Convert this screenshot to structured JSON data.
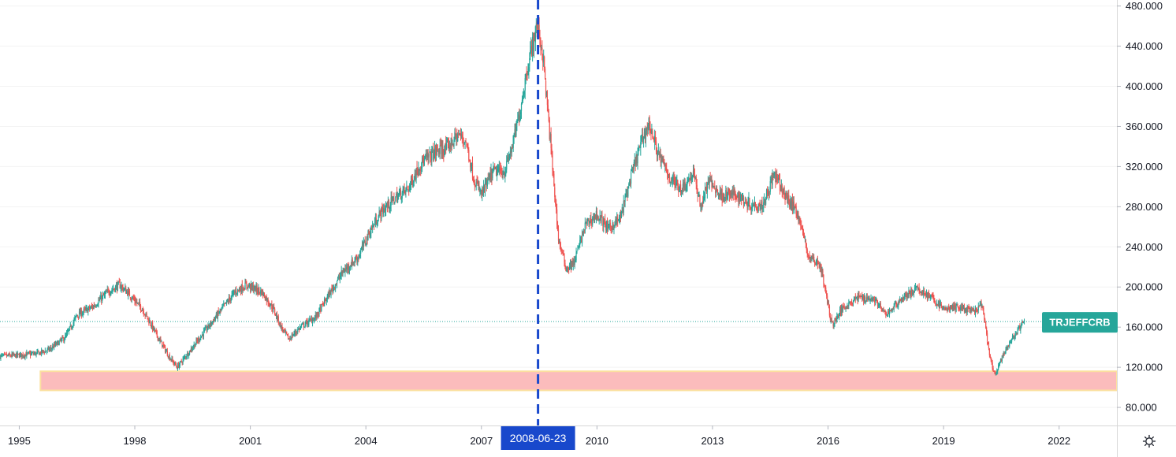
{
  "chart_data": {
    "type": "candlestick",
    "symbol": "TRJEFFCRB",
    "last_value": 165.5,
    "marked_date": "2008-06-23",
    "x_ticks": [
      "1995",
      "1998",
      "2001",
      "2004",
      "2007",
      "2010",
      "2013",
      "2016",
      "2019",
      "2022"
    ],
    "y_ticks": [
      "80.000",
      "120.000",
      "160.000",
      "200.000",
      "240.000",
      "280.000",
      "320.000",
      "360.000",
      "400.000",
      "440.000",
      "480.000"
    ],
    "ylim": [
      62,
      486
    ],
    "xlim": [
      1994.5,
      2023.5
    ],
    "support_zone": {
      "from": 97,
      "to": 116,
      "start": 1995.55,
      "end": 2023.5
    },
    "colors": {
      "up": "#26a69a",
      "down": "#ef5350",
      "marker_line": "#1848cc",
      "marker_label_bg": "#1848cc",
      "symbol_label_bg": "#26a69a",
      "zone_fill": "#fbbcbc",
      "zone_border": "#fbe0a0"
    },
    "price_path": [
      [
        1994.5,
        131
      ],
      [
        1995.0,
        132
      ],
      [
        1995.5,
        134
      ],
      [
        1995.8,
        138
      ],
      [
        1996.2,
        150
      ],
      [
        1996.5,
        172
      ],
      [
        1996.9,
        180
      ],
      [
        1997.3,
        195
      ],
      [
        1997.6,
        202
      ],
      [
        1997.8,
        195
      ],
      [
        1998.2,
        178
      ],
      [
        1998.6,
        150
      ],
      [
        1998.9,
        130
      ],
      [
        1999.1,
        120
      ],
      [
        1999.4,
        135
      ],
      [
        1999.8,
        155
      ],
      [
        2000.2,
        175
      ],
      [
        2000.6,
        195
      ],
      [
        2000.9,
        202
      ],
      [
        2001.3,
        195
      ],
      [
        2001.6,
        178
      ],
      [
        2001.8,
        160
      ],
      [
        2002.0,
        148
      ],
      [
        2002.3,
        160
      ],
      [
        2002.7,
        170
      ],
      [
        2003.0,
        190
      ],
      [
        2003.4,
        215
      ],
      [
        2003.8,
        230
      ],
      [
        2004.1,
        255
      ],
      [
        2004.4,
        275
      ],
      [
        2004.8,
        290
      ],
      [
        2005.1,
        298
      ],
      [
        2005.4,
        322
      ],
      [
        2005.8,
        335
      ],
      [
        2006.1,
        338
      ],
      [
        2006.4,
        352
      ],
      [
        2006.6,
        345
      ],
      [
        2006.8,
        308
      ],
      [
        2007.0,
        292
      ],
      [
        2007.3,
        315
      ],
      [
        2007.6,
        315
      ],
      [
        2007.8,
        340
      ],
      [
        2008.0,
        375
      ],
      [
        2008.2,
        420
      ],
      [
        2008.45,
        462
      ],
      [
        2008.6,
        430
      ],
      [
        2008.8,
        340
      ],
      [
        2009.0,
        248
      ],
      [
        2009.2,
        218
      ],
      [
        2009.4,
        224
      ],
      [
        2009.7,
        262
      ],
      [
        2010.0,
        272
      ],
      [
        2010.3,
        258
      ],
      [
        2010.6,
        268
      ],
      [
        2010.9,
        312
      ],
      [
        2011.2,
        350
      ],
      [
        2011.35,
        363
      ],
      [
        2011.6,
        332
      ],
      [
        2011.9,
        308
      ],
      [
        2012.2,
        298
      ],
      [
        2012.5,
        313
      ],
      [
        2012.7,
        280
      ],
      [
        2012.9,
        306
      ],
      [
        2013.2,
        292
      ],
      [
        2013.6,
        292
      ],
      [
        2014.0,
        282
      ],
      [
        2014.3,
        282
      ],
      [
        2014.6,
        312
      ],
      [
        2014.9,
        290
      ],
      [
        2015.2,
        275
      ],
      [
        2015.5,
        230
      ],
      [
        2015.8,
        222
      ],
      [
        2016.1,
        162
      ],
      [
        2016.4,
        180
      ],
      [
        2016.8,
        190
      ],
      [
        2017.2,
        188
      ],
      [
        2017.5,
        172
      ],
      [
        2017.9,
        188
      ],
      [
        2018.3,
        198
      ],
      [
        2018.6,
        192
      ],
      [
        2019.0,
        178
      ],
      [
        2019.4,
        180
      ],
      [
        2019.8,
        175
      ],
      [
        2020.0,
        183
      ],
      [
        2020.2,
        130
      ],
      [
        2020.32,
        112
      ],
      [
        2020.5,
        128
      ],
      [
        2020.8,
        150
      ],
      [
        2021.1,
        165.5
      ]
    ]
  }
}
